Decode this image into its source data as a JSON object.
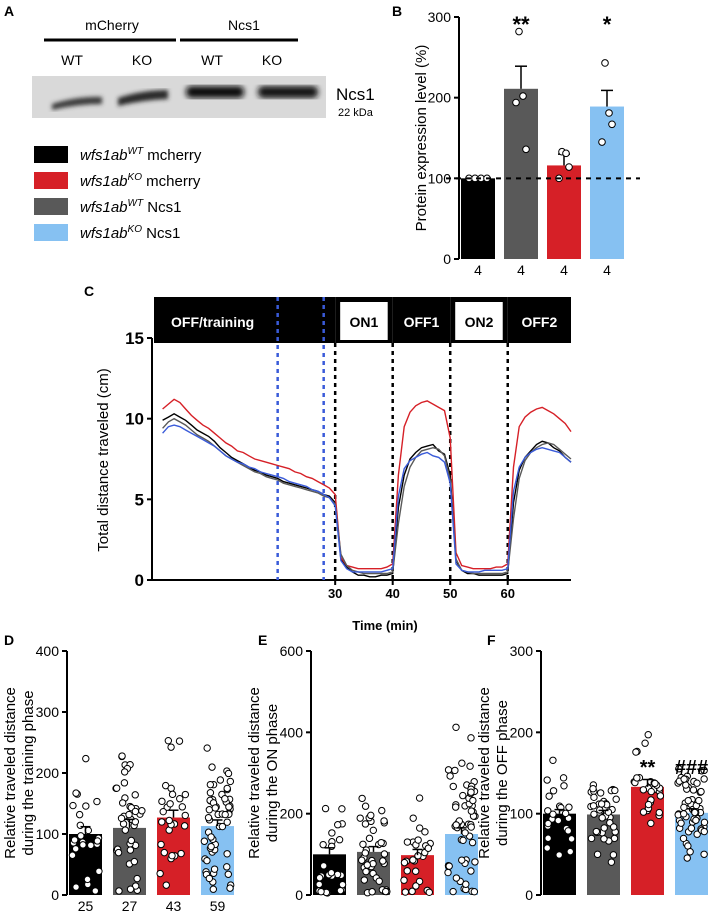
{
  "colors": {
    "black": "#000000",
    "red": "#d62027",
    "darkgray": "#595959",
    "lightblue": "#86c1f2",
    "blue_line": "#3a5bd9"
  },
  "panels": {
    "A": "A",
    "B": "B",
    "C": "C",
    "D": "D",
    "E": "E",
    "F": "F"
  },
  "blot": {
    "group1": "mCherry",
    "group2": "Ncs1",
    "lanes": [
      "WT",
      "KO",
      "WT",
      "KO"
    ],
    "protein": "Ncs1",
    "size": "22 kDa"
  },
  "legend": [
    {
      "base": "wfs1ab",
      "sup": "WT",
      "suffix": " mcherry",
      "color": "#000000"
    },
    {
      "base": "wfs1ab",
      "sup": "KO",
      "suffix": " mcherry",
      "color": "#d62027"
    },
    {
      "base": "wfs1ab",
      "sup": "WT",
      "suffix": " Ncs1",
      "color": "#595959"
    },
    {
      "base": "wfs1ab",
      "sup": "KO",
      "suffix": " Ncs1",
      "color": "#86c1f2"
    }
  ],
  "chart_data": [
    {
      "id": "B",
      "type": "bar",
      "ylabel": "Protein expression level (%)",
      "ylim": [
        0,
        300
      ],
      "yticks": [
        0,
        100,
        200,
        300
      ],
      "values": [
        100,
        211,
        116,
        189
      ],
      "errors": [
        0,
        28,
        14,
        20
      ],
      "points": [
        [
          100,
          100,
          100,
          100
        ],
        [
          282,
          202,
          194,
          136
        ],
        [
          133,
          131,
          100,
          114
        ],
        [
          243,
          181,
          145,
          167
        ]
      ],
      "n_labels": [
        "4",
        "4",
        "4",
        "4"
      ],
      "significance": [
        "",
        "**",
        "",
        "*"
      ],
      "reference_line": 100
    },
    {
      "id": "C",
      "type": "line",
      "ylabel": "Total distance traveled (cm)",
      "xlabel": "Time (min)",
      "xticks": [
        30,
        40,
        50,
        60
      ],
      "ylim": [
        0,
        15
      ],
      "yticks": [
        0,
        5,
        10,
        15
      ],
      "xlim": [
        -1.5,
        71
      ],
      "phases": [
        {
          "label": "OFF/training",
          "start": -1.5,
          "end": 30,
          "dark": true
        },
        {
          "label": "ON1",
          "start": 30,
          "end": 40,
          "dark": false
        },
        {
          "label": "OFF1",
          "start": 40,
          "end": 50,
          "dark": true
        },
        {
          "label": "ON2",
          "start": 50,
          "end": 60,
          "dark": false
        },
        {
          "label": "OFF2",
          "start": 60,
          "end": 71,
          "dark": true
        }
      ],
      "blue_dashed_x": [
        20,
        28
      ],
      "black_dashed_x": [
        30,
        40,
        50,
        60
      ],
      "series": [
        {
          "color": "#000000",
          "y": [
            9.9,
            10.1,
            10.3,
            10.1,
            9.9,
            9.6,
            9.3,
            9.1,
            8.9,
            8.6,
            8.2,
            7.9,
            7.6,
            7.4,
            7.2,
            7.0,
            6.8,
            6.7,
            6.5,
            6.4,
            6.3,
            6.1,
            6.0,
            5.9,
            5.8,
            5.7,
            5.6,
            5.5,
            5.3,
            5.2,
            4.8,
            1.3,
            0.8,
            0.5,
            0.3,
            0.3,
            0.2,
            0.2,
            0.3,
            0.3,
            0.4,
            4.5,
            6.5,
            7.5,
            7.9,
            8.2,
            8.3,
            8.4,
            8.0,
            7.8,
            6.5,
            1.2,
            0.6,
            0.4,
            0.4,
            0.3,
            0.3,
            0.3,
            0.3,
            0.3,
            0.4,
            4.8,
            6.8,
            7.6,
            8.0,
            8.4,
            8.6,
            8.5,
            8.2,
            8.0,
            7.6,
            7.3
          ]
        },
        {
          "color": "#d62027",
          "y": [
            10.6,
            10.9,
            11.2,
            11.0,
            10.6,
            10.2,
            9.9,
            9.6,
            9.4,
            9.1,
            8.8,
            8.5,
            8.3,
            8.0,
            7.9,
            7.7,
            7.5,
            7.4,
            7.3,
            7.2,
            7.1,
            7.0,
            6.9,
            6.7,
            6.6,
            6.4,
            6.3,
            6.1,
            5.9,
            5.7,
            5.3,
            1.4,
            0.9,
            0.8,
            0.7,
            0.7,
            0.7,
            0.7,
            0.7,
            0.8,
            1.0,
            6.5,
            9.5,
            10.4,
            10.8,
            11.0,
            11.1,
            10.9,
            10.7,
            10.5,
            8.8,
            1.7,
            0.9,
            0.8,
            0.7,
            0.7,
            0.7,
            0.7,
            0.8,
            0.8,
            1.0,
            7.0,
            9.5,
            10.1,
            10.4,
            10.6,
            10.7,
            10.5,
            10.3,
            10.0,
            9.7,
            9.2
          ]
        },
        {
          "color": "#595959",
          "y": [
            9.4,
            9.8,
            10.0,
            9.8,
            9.6,
            9.3,
            9.0,
            8.8,
            8.6,
            8.3,
            8.0,
            7.7,
            7.5,
            7.3,
            7.1,
            6.9,
            6.7,
            6.6,
            6.4,
            6.3,
            6.2,
            6.0,
            5.9,
            5.8,
            5.7,
            5.6,
            5.5,
            5.4,
            5.2,
            5.1,
            4.7,
            1.6,
            0.9,
            0.6,
            0.5,
            0.4,
            0.4,
            0.4,
            0.4,
            0.4,
            0.5,
            3.5,
            5.8,
            7.0,
            7.6,
            8.0,
            8.1,
            8.2,
            8.1,
            7.7,
            6.2,
            1.3,
            0.6,
            0.5,
            0.4,
            0.4,
            0.4,
            0.4,
            0.4,
            0.4,
            0.5,
            3.8,
            6.3,
            7.4,
            7.9,
            8.2,
            8.4,
            8.5,
            8.4,
            8.1,
            7.8,
            7.5
          ]
        },
        {
          "color": "#3a5bd9",
          "y": [
            9.1,
            9.5,
            9.6,
            9.5,
            9.3,
            9.1,
            8.9,
            8.7,
            8.5,
            8.3,
            8.0,
            7.7,
            7.5,
            7.3,
            7.2,
            7.0,
            6.9,
            6.7,
            6.6,
            6.5,
            6.4,
            6.3,
            6.1,
            6.0,
            5.9,
            5.8,
            5.6,
            5.5,
            5.3,
            5.1,
            4.6,
            1.2,
            0.7,
            0.5,
            0.5,
            0.5,
            0.5,
            0.5,
            0.5,
            0.6,
            0.7,
            5.2,
            6.9,
            7.4,
            7.6,
            7.8,
            7.9,
            7.7,
            7.6,
            7.3,
            6.0,
            1.0,
            0.6,
            0.5,
            0.5,
            0.5,
            0.6,
            0.6,
            0.6,
            0.6,
            0.7,
            5.5,
            7.0,
            7.6,
            7.9,
            8.1,
            8.2,
            8.1,
            8.0,
            7.9,
            7.6,
            7.3
          ]
        }
      ]
    },
    {
      "id": "D",
      "type": "bar",
      "ylabel": "Relative traveled distance\nduring the training phase",
      "ylim": [
        0,
        400
      ],
      "yticks": [
        0,
        100,
        200,
        300,
        400
      ],
      "values": [
        100,
        110,
        127,
        113
      ],
      "errors": [
        12,
        14,
        12,
        10
      ],
      "n_labels": [
        "25",
        "27",
        "43",
        "59"
      ],
      "significance": [
        "",
        "",
        "",
        ""
      ]
    },
    {
      "id": "E",
      "type": "bar",
      "ylabel": "Relative traveled distance\nduring the ON phase",
      "ylim": [
        0,
        600
      ],
      "yticks": [
        0,
        200,
        400,
        600
      ],
      "values": [
        100,
        106,
        98,
        150
      ],
      "errors": [
        16,
        13,
        14,
        15
      ],
      "n_labels": [],
      "significance": [
        "",
        "",
        "",
        ""
      ]
    },
    {
      "id": "F",
      "type": "bar",
      "ylabel": "Relative traveled distance\nduring the OFF phase",
      "ylim": [
        0,
        300
      ],
      "yticks": [
        0,
        100,
        200,
        300
      ],
      "values": [
        100,
        99,
        133,
        101
      ],
      "errors": [
        5,
        5,
        9,
        5
      ],
      "n_labels": [],
      "significance": [
        "",
        "",
        "**",
        "###"
      ]
    }
  ]
}
